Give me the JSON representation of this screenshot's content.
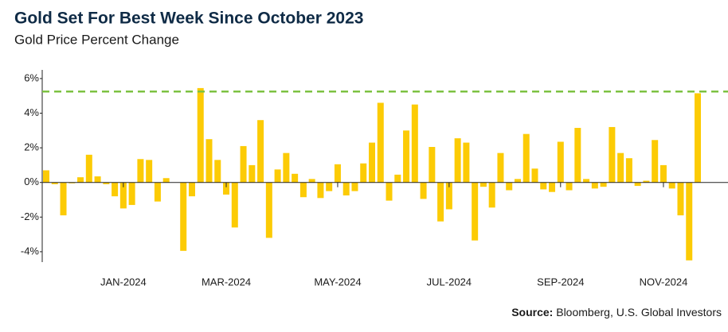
{
  "chart_data": {
    "type": "bar",
    "title": "Gold Set For Best Week Since October 2023",
    "subtitle": "Gold Price Percent Change",
    "source_label": "Source:",
    "source": "Bloomberg, U.S. Global Investors",
    "categories": [
      null,
      null,
      null,
      null,
      null,
      null,
      null,
      null,
      null,
      "JAN-2024",
      null,
      null,
      null,
      null,
      null,
      null,
      null,
      null,
      null,
      null,
      null,
      "MAR-2024",
      null,
      null,
      null,
      null,
      null,
      null,
      null,
      null,
      null,
      null,
      null,
      null,
      "MAY-2024",
      null,
      null,
      null,
      null,
      null,
      null,
      null,
      null,
      null,
      null,
      null,
      null,
      "JUL-2024",
      null,
      null,
      null,
      null,
      null,
      null,
      null,
      null,
      null,
      null,
      null,
      null,
      "SEP-2024",
      null,
      null,
      null,
      null,
      null,
      null,
      null,
      null,
      null,
      null,
      null,
      "NOV-2024",
      null,
      null,
      null,
      null
    ],
    "values": [
      0.7,
      -0.1,
      -1.9,
      -0.05,
      0.3,
      1.6,
      0.35,
      -0.1,
      -0.8,
      -1.5,
      -1.3,
      1.35,
      1.3,
      -1.1,
      0.25,
      0,
      -3.95,
      -0.8,
      5.45,
      2.5,
      1.3,
      -0.7,
      -2.6,
      2.1,
      1.0,
      3.6,
      -3.2,
      0.75,
      1.7,
      0.5,
      -0.85,
      0.2,
      -0.9,
      -0.5,
      1.05,
      -0.75,
      -0.5,
      1.1,
      2.3,
      4.6,
      -1.05,
      0.45,
      3.0,
      4.5,
      -0.95,
      2.05,
      -2.25,
      -1.55,
      2.55,
      2.3,
      -3.35,
      -0.25,
      -1.45,
      1.7,
      -0.45,
      0.2,
      2.8,
      0.8,
      -0.4,
      -0.55,
      2.35,
      -0.45,
      3.15,
      0.2,
      -0.35,
      -0.25,
      3.2,
      1.7,
      1.4,
      -0.2,
      0.1,
      2.45,
      1.0,
      -0.35,
      -1.9,
      -4.5,
      5.15
    ],
    "color": "#fccb05",
    "reference_value": 5.25,
    "reference_color": "#7dc242",
    "ylim": [
      -4.6,
      6.5
    ],
    "yticks": [
      {
        "value": -4,
        "label": "-4%"
      },
      {
        "value": -2,
        "label": "-2%"
      },
      {
        "value": 0,
        "label": "0%"
      },
      {
        "value": 2,
        "label": "2%"
      },
      {
        "value": 4,
        "label": "4%"
      },
      {
        "value": 6,
        "label": "6%"
      }
    ]
  }
}
